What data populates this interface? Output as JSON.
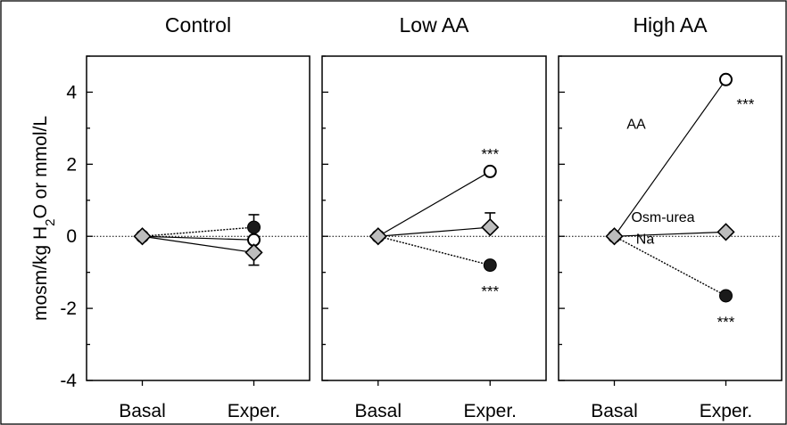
{
  "chart_data": {
    "type": "scatter",
    "ylabel": {
      "main": "mosm/kg H",
      "sub": "2",
      "rest": "O or mmol/L"
    },
    "ylim": [
      -4,
      5
    ],
    "yticks": [
      "4",
      "2",
      "0",
      "-2",
      "-4"
    ],
    "ytick_values": [
      4,
      2,
      0,
      -2,
      -4
    ],
    "categories": [
      "Basal",
      "Exper."
    ],
    "reference_line": 0,
    "colors": {
      "aa": "#ffffff",
      "osm_urea": "#bdbdbd",
      "na": "#1a1a1a",
      "line": "#000000"
    },
    "panels": [
      {
        "title": "Control",
        "series": [
          {
            "key": "aa",
            "marker": "open-circle",
            "line": "solid",
            "values": [
              0,
              -0.1
            ],
            "error": null
          },
          {
            "key": "osm_urea",
            "marker": "gray-diamond",
            "line": "solid",
            "values": [
              0,
              -0.45
            ],
            "error": 0.35
          },
          {
            "key": "na",
            "marker": "filled-circle",
            "line": "dotted",
            "values": [
              0,
              0.25
            ],
            "error": 0.35
          }
        ],
        "annotations": []
      },
      {
        "title": "Low AA",
        "series": [
          {
            "key": "aa",
            "marker": "open-circle",
            "line": "solid",
            "values": [
              0,
              1.8
            ],
            "error": null
          },
          {
            "key": "osm_urea",
            "marker": "gray-diamond",
            "line": "solid",
            "values": [
              0,
              0.25
            ],
            "error": 0.4
          },
          {
            "key": "na",
            "marker": "filled-circle",
            "line": "dotted",
            "values": [
              0,
              -0.8
            ],
            "error": null
          }
        ],
        "annotations": [
          {
            "text": "***",
            "kind": "stars",
            "anchor_series": "aa",
            "position": "above"
          },
          {
            "text": "***",
            "kind": "stars",
            "anchor_series": "na",
            "position": "below"
          }
        ]
      },
      {
        "title": "High AA",
        "series": [
          {
            "key": "aa",
            "marker": "open-circle",
            "line": "solid",
            "values": [
              0,
              4.35
            ],
            "error": null,
            "label": "AA"
          },
          {
            "key": "osm_urea",
            "marker": "gray-diamond",
            "line": "solid",
            "values": [
              0,
              0.12
            ],
            "error": null,
            "label": "Osm-urea"
          },
          {
            "key": "na",
            "marker": "filled-circle",
            "line": "dotted",
            "values": [
              0,
              -1.65
            ],
            "error": null,
            "label": "Na"
          }
        ],
        "annotations": [
          {
            "text": "***",
            "kind": "stars",
            "anchor_series": "aa",
            "position": "below-right"
          },
          {
            "text": "***",
            "kind": "stars",
            "anchor_series": "na",
            "position": "below"
          }
        ]
      }
    ]
  }
}
